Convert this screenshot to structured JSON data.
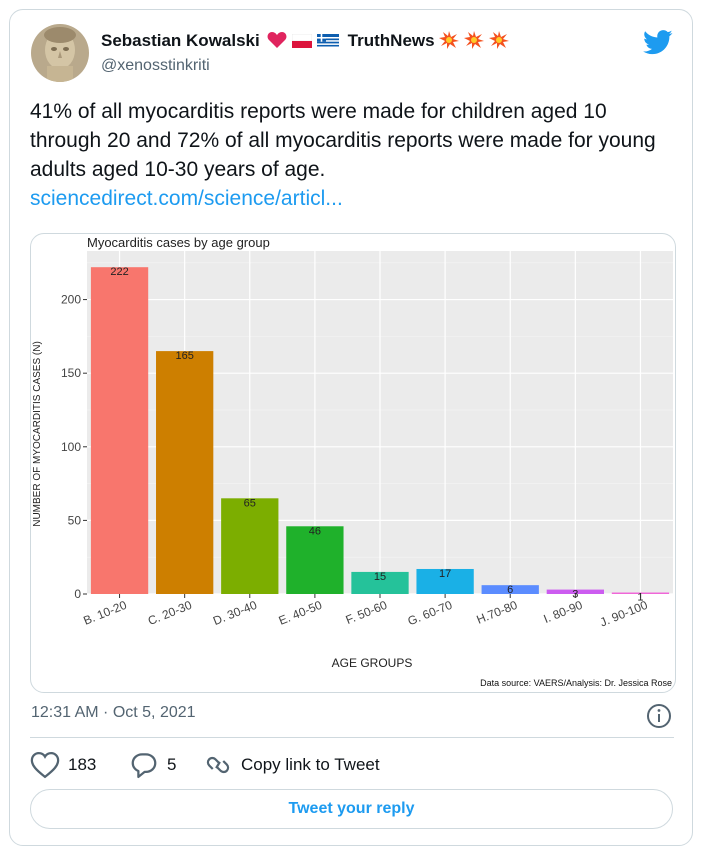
{
  "tweet": {
    "author_name": "Sebastian Kowalski",
    "author_suffix": "TruthNews",
    "handle": "@xenosstinkriti",
    "text": "41% of all myocarditis reports were made for children aged 10 through 20 and 72% of all myocarditis reports were made for young adults aged 10-30 years of age.",
    "link_text": "sciencedirect.com/science/articl...",
    "timestamp": "12:31 AM · Oct 5, 2021"
  },
  "actions": {
    "like_count": "183",
    "reply_count": "5",
    "copy_link_label": "Copy link to Tweet",
    "reply_button_label": "Tweet your reply"
  },
  "icons": {
    "brand": "twitter-bird-icon",
    "heart": "heart-icon",
    "reply": "reply-bubble-icon",
    "link": "link-icon",
    "info": "info-icon"
  },
  "colors": {
    "accent": "#1d9bf0",
    "heart_emoji": "#e0245e"
  },
  "chart_data": {
    "type": "bar",
    "title": "Myocarditis cases by age group",
    "xlabel": "AGE GROUPS",
    "ylabel": "NUMBER OF MYOCARDITIS CASES (N)",
    "source": "Data source: VAERS/Analysis: Dr. Jessica Rose",
    "categories": [
      "B. 10-20",
      "C. 20-30",
      "D. 30-40",
      "E. 40-50",
      "F. 50-60",
      "G. 60-70",
      "H.70-80",
      "I. 80-90",
      "J. 90-100"
    ],
    "values": [
      222,
      165,
      65,
      46,
      15,
      17,
      6,
      3,
      1
    ],
    "value_labels": [
      "222",
      "165",
      "65",
      "46",
      "15",
      "17",
      "6",
      "3",
      "1"
    ],
    "colors": [
      "#f8766d",
      "#cd7f00",
      "#7cae00",
      "#1fb12b",
      "#25c29a",
      "#1ab0e6",
      "#5b8cff",
      "#cc5cf0",
      "#f066d8"
    ],
    "yticks": [
      0,
      50,
      100,
      150,
      200
    ],
    "ytick_labels": [
      "0",
      "50",
      "100",
      "150",
      "200"
    ],
    "ylim": [
      0,
      233
    ],
    "grid": true,
    "legend": "none"
  }
}
